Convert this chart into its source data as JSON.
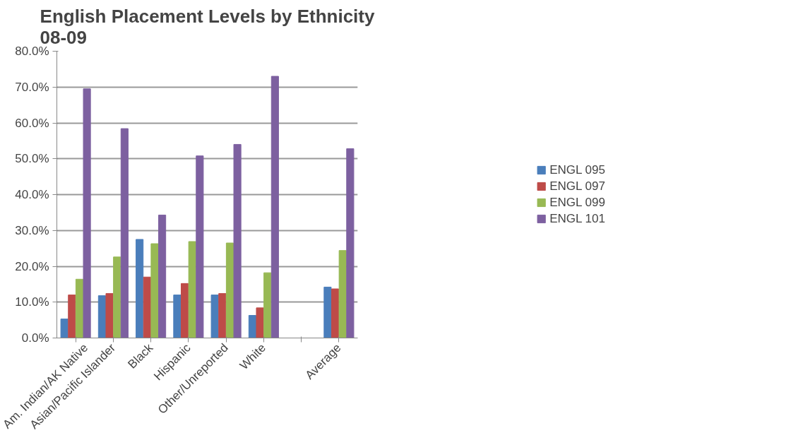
{
  "chart_data": {
    "type": "bar",
    "title": "English Placement Levels by Ethnicity\n08-09",
    "categories": [
      "Am. Indian/AK Native",
      "Asian/Pacific Islander",
      "Black",
      "Hispanic",
      "Other/Unreported",
      "White",
      null,
      "Average"
    ],
    "series": [
      {
        "name": "ENGL 095",
        "color": "#4a7ebb",
        "values": [
          5.3,
          11.8,
          27.5,
          12.0,
          12.0,
          6.3,
          null,
          14.2
        ]
      },
      {
        "name": "ENGL 097",
        "color": "#be4b48",
        "values": [
          12.0,
          12.4,
          17.0,
          15.2,
          12.4,
          8.4,
          null,
          13.7
        ]
      },
      {
        "name": "ENGL 099",
        "color": "#98b954",
        "values": [
          16.4,
          22.6,
          26.3,
          26.9,
          26.5,
          18.2,
          null,
          24.4
        ]
      },
      {
        "name": "ENGL 101",
        "color": "#7d60a0",
        "values": [
          69.5,
          58.4,
          34.3,
          50.8,
          54.0,
          73.0,
          null,
          52.8
        ]
      }
    ],
    "ylim": [
      0,
      80
    ],
    "yticks": [
      {
        "value": 0,
        "label": "0.0%"
      },
      {
        "value": 10,
        "label": "10.0%"
      },
      {
        "value": 20,
        "label": "20.0%"
      },
      {
        "value": 30,
        "label": "30.0%"
      },
      {
        "value": 40,
        "label": "40.0%"
      },
      {
        "value": 50,
        "label": "50.0%"
      },
      {
        "value": 60,
        "label": "60.0%"
      },
      {
        "value": 70,
        "label": "70.0%"
      },
      {
        "value": 80,
        "label": "80.0%"
      }
    ],
    "grid": "y",
    "legend": "right"
  }
}
